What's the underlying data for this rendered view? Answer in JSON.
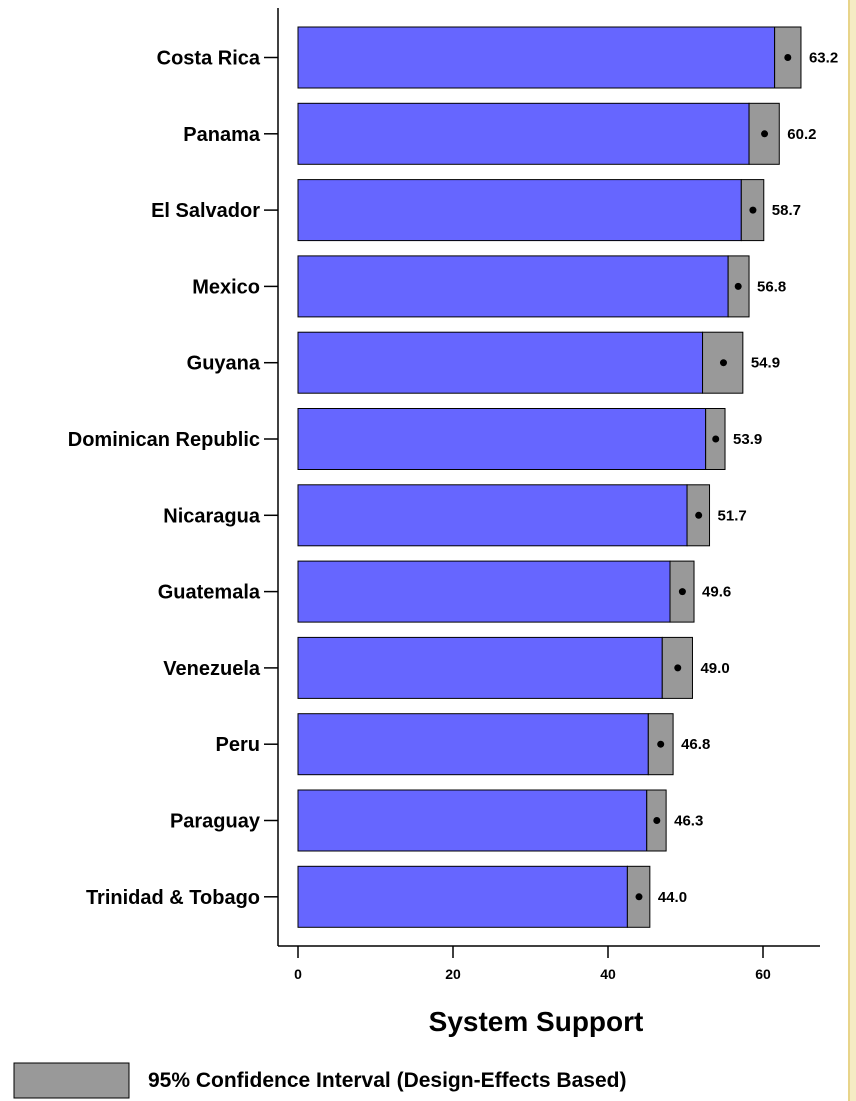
{
  "chart_data": {
    "type": "bar",
    "orientation": "horizontal",
    "xlabel": "System Support",
    "xlim": [
      0,
      68
    ],
    "xticks": [
      0,
      20,
      40,
      60
    ],
    "categories": [
      "Costa Rica",
      "Panama",
      "El Salvador",
      "Mexico",
      "Guyana",
      "Dominican Republic",
      "Nicaragua",
      "Guatemala",
      "Venezuela",
      "Peru",
      "Paraguay",
      "Trinidad & Tobago"
    ],
    "values": [
      63.2,
      60.2,
      58.7,
      56.8,
      54.9,
      53.9,
      51.7,
      49.6,
      49.0,
      46.8,
      46.3,
      44.0
    ],
    "value_labels": [
      "63.2",
      "60.2",
      "58.7",
      "56.8",
      "54.9",
      "53.9",
      "51.7",
      "49.6",
      "49.0",
      "46.8",
      "46.3",
      "44.0"
    ],
    "ci_low": [
      61.5,
      58.2,
      57.2,
      55.5,
      52.2,
      52.6,
      50.2,
      48.0,
      47.0,
      45.2,
      45.0,
      42.5
    ],
    "ci_high": [
      64.9,
      62.1,
      60.1,
      58.2,
      57.4,
      55.1,
      53.1,
      51.1,
      50.9,
      48.4,
      47.5,
      45.4
    ],
    "legend": {
      "label": "95% Confidence Interval (Design-Effects Based)",
      "position": "bottom-left"
    },
    "colors": {
      "bar": "#6666ff",
      "ci": "#999999",
      "point": "#000000"
    },
    "grid": false
  }
}
